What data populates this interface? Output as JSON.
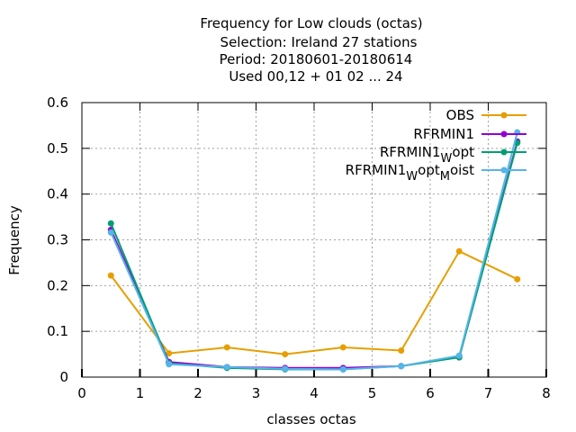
{
  "chart_data": {
    "type": "line",
    "title_lines": [
      "Frequency  for Low clouds (octas)",
      "Selection: Ireland      27 stations",
      "Period: 20180601-20180614",
      "Used  00,12  + 01 02 ... 24"
    ],
    "xlabel": "classes octas",
    "ylabel": "Frequency",
    "xlim": [
      0,
      8
    ],
    "ylim": [
      0,
      0.6
    ],
    "xticks": [
      0,
      1,
      2,
      3,
      4,
      5,
      6,
      7,
      8
    ],
    "yticks": [
      0,
      0.1,
      0.2,
      0.3,
      0.4,
      0.5,
      0.6
    ],
    "ytick_labels": [
      "0",
      "0.1",
      "0.2",
      "0.3",
      "0.4",
      "0.5",
      "0.6"
    ],
    "grid": true,
    "legend_position": "top-right",
    "x": [
      0.5,
      1.5,
      2.5,
      3.5,
      4.5,
      5.5,
      6.5,
      7.5
    ],
    "series": [
      {
        "name": "OBS",
        "name_parts": [
          {
            "t": "OBS"
          }
        ],
        "color": "#e69f00",
        "values": [
          0.222,
          0.052,
          0.065,
          0.05,
          0.065,
          0.058,
          0.275,
          0.214
        ]
      },
      {
        "name": "RFRMIN1",
        "name_parts": [
          {
            "t": "RFRMIN1"
          }
        ],
        "color": "#9400d3",
        "values": [
          0.322,
          0.033,
          0.022,
          0.02,
          0.02,
          0.024,
          0.045,
          0.515
        ]
      },
      {
        "name": "RFRMIN1_W opt",
        "name_parts": [
          {
            "t": "RFRMIN1"
          },
          {
            "t": "W",
            "sub": true
          },
          {
            "t": "opt"
          }
        ],
        "color": "#009e73",
        "values": [
          0.336,
          0.03,
          0.02,
          0.017,
          0.017,
          0.024,
          0.043,
          0.512
        ]
      },
      {
        "name": "RFRMIN1_W opt_M oist",
        "name_parts": [
          {
            "t": "RFRMIN1"
          },
          {
            "t": "W",
            "sub": true
          },
          {
            "t": "opt"
          },
          {
            "t": "M",
            "sub": true
          },
          {
            "t": "oist"
          }
        ],
        "color": "#56b4e9",
        "values": [
          0.316,
          0.028,
          0.022,
          0.018,
          0.017,
          0.024,
          0.047,
          0.535
        ]
      }
    ]
  }
}
